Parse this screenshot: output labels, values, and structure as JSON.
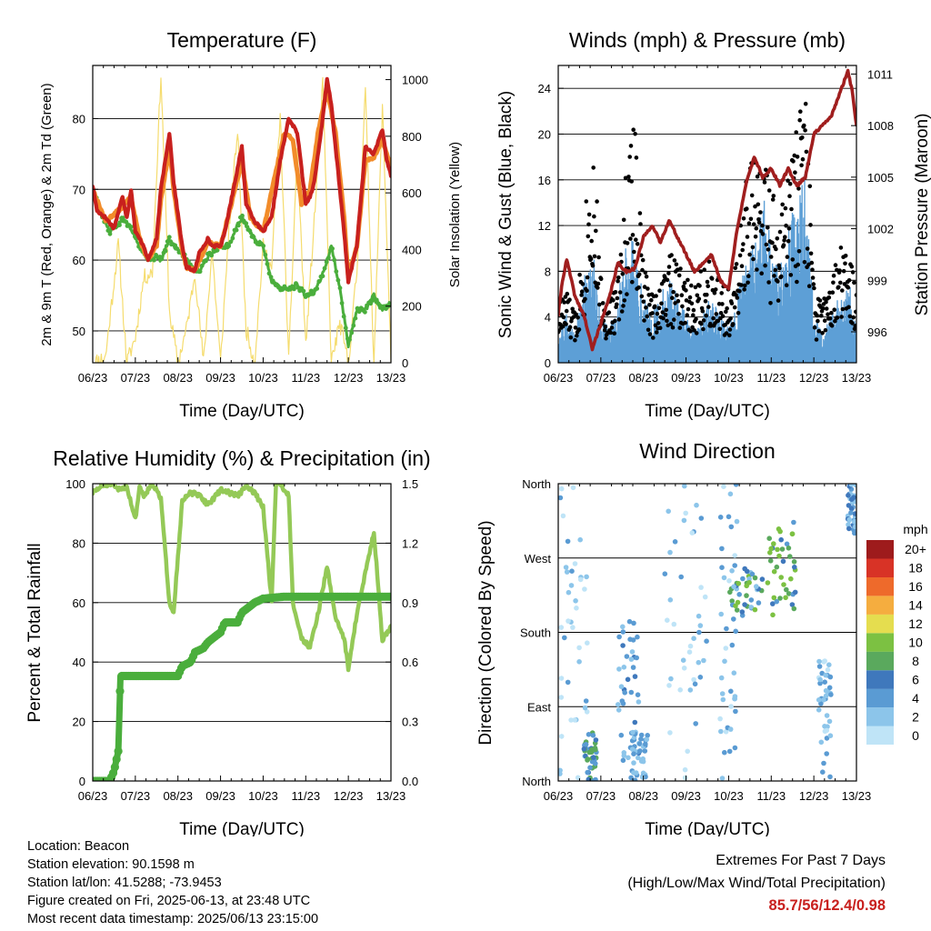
{
  "colors": {
    "t2m": "#c8201e",
    "t9m": "#f28c2a",
    "td2m": "#4aae3c",
    "solar": "#f5dc6e",
    "wind": "#5d9fd6",
    "gust": "#000000",
    "pressure": "#a01e1e",
    "rh": "#94c957",
    "precip": "#4aae3c"
  },
  "time_ticks": [
    "06/23",
    "07/23",
    "08/23",
    "09/23",
    "10/23",
    "11/23",
    "12/23",
    "13/23"
  ],
  "chart_data": [
    {
      "type": "line",
      "title": "Temperature (F)",
      "xlabel": "Time (Day/UTC)",
      "ylabel": "2m & 9m T (Red, Orange) & 2m Td (Green)",
      "y2label": "Solar Insolation (Yellow)",
      "x_ticks": [
        "06/23",
        "07/23",
        "08/23",
        "09/23",
        "10/23",
        "11/23",
        "12/23",
        "13/23"
      ],
      "ylim": [
        45.5,
        87.5
      ],
      "yticks": [
        50,
        60,
        70,
        80
      ],
      "y2lim": [
        0,
        1050
      ],
      "y2ticks": [
        0,
        200,
        400,
        600,
        800,
        1000
      ],
      "grid": true,
      "series": [
        {
          "name": "2m T",
          "color": "#c8201e",
          "axis": "left",
          "x": [
            6.0,
            6.1,
            6.3,
            6.5,
            6.7,
            6.8,
            6.9,
            7.0,
            7.2,
            7.3,
            7.5,
            7.6,
            7.8,
            7.9,
            8.1,
            8.2,
            8.4,
            8.5,
            8.7,
            8.8,
            9.0,
            9.1,
            9.3,
            9.5,
            9.6,
            9.8,
            10.0,
            10.2,
            10.4,
            10.6,
            10.8,
            11.0,
            11.1,
            11.2,
            11.4,
            11.5,
            11.6,
            11.8,
            11.9,
            12.0,
            12.2,
            12.4,
            12.6,
            12.8,
            12.9,
            13.0
          ],
          "y": [
            70.5,
            67,
            66,
            64.5,
            69,
            66,
            70,
            64,
            62,
            60,
            63,
            70,
            78,
            71,
            62,
            59,
            58.5,
            61,
            63,
            62,
            62,
            64,
            70,
            76,
            68,
            65.5,
            64,
            66,
            74,
            80,
            78,
            68,
            69,
            71,
            80,
            85.5,
            82,
            70,
            64,
            57,
            62,
            76,
            75,
            78.5,
            74,
            72
          ]
        },
        {
          "name": "9m T",
          "color": "#f28c2a",
          "axis": "left",
          "x": [
            6.0,
            6.3,
            6.7,
            6.9,
            7.1,
            7.3,
            7.5,
            7.6,
            7.8,
            7.9,
            8.1,
            8.2,
            8.4,
            8.7,
            9.0,
            9.3,
            9.5,
            9.7,
            10.0,
            10.3,
            10.5,
            10.7,
            10.9,
            11.1,
            11.3,
            11.5,
            11.7,
            11.9,
            12.0,
            12.2,
            12.4,
            12.6,
            12.8,
            13.0
          ],
          "y": [
            70,
            65.5,
            67.5,
            69,
            63,
            60,
            62,
            68.5,
            76,
            70,
            61.5,
            59,
            58.5,
            62.5,
            62,
            69,
            74,
            66,
            64,
            72.5,
            78,
            77,
            68,
            70,
            78.5,
            84,
            78,
            66,
            57.5,
            62,
            74,
            74.5,
            77,
            73
          ]
        },
        {
          "name": "2m Td",
          "color": "#4aae3c",
          "axis": "left",
          "x": [
            6.0,
            6.2,
            6.4,
            6.6,
            6.7,
            6.9,
            7.1,
            7.3,
            7.5,
            7.6,
            7.8,
            7.9,
            8.1,
            8.3,
            8.5,
            8.7,
            8.9,
            9.0,
            9.2,
            9.4,
            9.5,
            9.6,
            9.8,
            10.0,
            10.2,
            10.4,
            10.6,
            10.8,
            11.0,
            11.2,
            11.4,
            11.6,
            11.8,
            11.9,
            12.0,
            12.2,
            12.4,
            12.6,
            12.8,
            13.0
          ],
          "y": [
            70,
            66.5,
            64,
            65,
            66,
            64.5,
            62,
            60,
            60.5,
            60,
            63,
            62,
            61,
            59,
            58.5,
            60.5,
            61.5,
            62,
            62,
            65,
            66,
            65,
            63,
            62,
            57,
            56,
            56,
            56.5,
            55,
            55.5,
            58,
            62,
            56,
            52,
            48,
            53,
            53,
            55,
            53,
            54
          ]
        },
        {
          "name": "Solar Insolation",
          "color": "#f5dc6e",
          "axis": "right",
          "x": [
            6.0,
            6.3,
            6.6,
            6.8,
            7.0,
            7.2,
            7.4,
            7.6,
            7.8,
            8.0,
            8.2,
            8.4,
            8.6,
            8.8,
            9.0,
            9.2,
            9.4,
            9.6,
            9.8,
            10.0,
            10.2,
            10.4,
            10.6,
            10.8,
            11.0,
            11.2,
            11.4,
            11.6,
            11.8,
            12.0,
            12.2,
            12.4,
            12.6,
            12.8,
            13.0
          ],
          "y": [
            0,
            20,
            420,
            0,
            90,
            300,
            320,
            1020,
            180,
            0,
            120,
            320,
            0,
            400,
            0,
            480,
            820,
            120,
            0,
            410,
            330,
            880,
            0,
            760,
            60,
            500,
            980,
            0,
            140,
            0,
            320,
            960,
            0,
            900,
            20
          ]
        }
      ]
    },
    {
      "type": "line",
      "title": "Winds (mph) & Pressure (mb)",
      "xlabel": "Time (Day/UTC)",
      "ylabel": "Sonic Wind & Gust (Blue, Black)",
      "y2label": "Station Pressure (Maroon)",
      "x_ticks": [
        "06/23",
        "07/23",
        "08/23",
        "09/23",
        "10/23",
        "11/23",
        "12/23",
        "13/23"
      ],
      "ylim": [
        0,
        26
      ],
      "yticks": [
        0,
        4,
        8,
        12,
        16,
        20,
        24
      ],
      "y2lim": [
        994.2,
        1011.5
      ],
      "y2ticks": [
        996,
        999,
        1002,
        1005,
        1008,
        1011
      ],
      "grid": true,
      "series": [
        {
          "name": "Sonic Wind",
          "color": "#5d9fd6",
          "axis": "left",
          "x": [
            6.0,
            6.2,
            6.4,
            6.6,
            6.8,
            7.0,
            7.2,
            7.4,
            7.6,
            7.8,
            8.0,
            8.2,
            8.4,
            8.6,
            8.8,
            9.0,
            9.2,
            9.4,
            9.6,
            9.8,
            10.0,
            10.2,
            10.4,
            10.6,
            10.8,
            11.0,
            11.2,
            11.4,
            11.6,
            11.8,
            12.0,
            12.2,
            12.4,
            12.6,
            12.8,
            13.0
          ],
          "y": [
            2,
            3,
            2,
            5,
            7,
            3,
            2,
            4,
            8,
            7,
            4,
            3,
            4,
            5,
            4,
            3,
            2,
            3,
            4,
            3,
            2,
            4,
            6,
            8,
            10,
            7,
            6,
            8,
            10,
            12,
            3,
            2,
            3,
            4,
            5,
            3
          ]
        },
        {
          "name": "Gust",
          "color": "#000000",
          "axis": "left",
          "x": [
            6.0,
            6.2,
            6.4,
            6.6,
            6.8,
            7.0,
            7.2,
            7.4,
            7.6,
            7.8,
            8.0,
            8.2,
            8.4,
            8.6,
            8.8,
            9.0,
            9.2,
            9.4,
            9.6,
            9.8,
            10.0,
            10.2,
            10.4,
            10.6,
            10.8,
            11.0,
            11.2,
            11.4,
            11.6,
            11.8,
            12.0,
            12.2,
            12.4,
            12.6,
            12.8,
            13.0
          ],
          "y": [
            5,
            6,
            4,
            11,
            20,
            7,
            5,
            7,
            16,
            20,
            8,
            6,
            7,
            9,
            8,
            7,
            6,
            8,
            9,
            7,
            6,
            8,
            15,
            17,
            18,
            14,
            12,
            16,
            19,
            24,
            6,
            5,
            6,
            10,
            9,
            6
          ]
        },
        {
          "name": "Station Pressure",
          "color": "#a01e1e",
          "axis": "right",
          "x": [
            6.0,
            6.1,
            6.2,
            6.4,
            6.6,
            6.8,
            7.0,
            7.2,
            7.4,
            7.6,
            7.8,
            8.0,
            8.2,
            8.4,
            8.6,
            8.8,
            9.0,
            9.2,
            9.4,
            9.6,
            9.8,
            10.0,
            10.2,
            10.4,
            10.6,
            10.8,
            11.0,
            11.2,
            11.4,
            11.6,
            11.8,
            12.0,
            12.2,
            12.4,
            12.6,
            12.8,
            12.9,
            13.0
          ],
          "y": [
            997,
            999,
            1000.2,
            998,
            997,
            995,
            996.5,
            998,
            1000,
            999.5,
            999.7,
            1001.5,
            1002.2,
            1001.2,
            1002.5,
            1001.5,
            1000.5,
            999.5,
            1000,
            1000.5,
            999,
            998.5,
            1002,
            1004.5,
            1006.2,
            1005,
            1005.5,
            1004.5,
            1005.5,
            1004.5,
            1005,
            1007.5,
            1008,
            1008.5,
            1009.8,
            1011.2,
            1010,
            1008
          ]
        }
      ]
    },
    {
      "type": "line",
      "title": "Relative Humidity (%) & Precipitation (in)",
      "xlabel": "Time (Day/UTC)",
      "ylabel": "Percent & Total Rainfall",
      "x_ticks": [
        "06/23",
        "07/23",
        "08/23",
        "09/23",
        "10/23",
        "11/23",
        "12/23",
        "13/23"
      ],
      "ylim": [
        0,
        100
      ],
      "yticks": [
        0,
        20,
        40,
        60,
        80,
        100
      ],
      "y2lim": [
        0,
        1.5
      ],
      "y2ticks": [
        "0.0",
        "0.3",
        "0.6",
        "0.9",
        "1.2",
        "1.5"
      ],
      "grid": true,
      "series": [
        {
          "name": "Relative Humidity",
          "color": "#94c957",
          "axis": "left",
          "x": [
            6.0,
            6.2,
            6.4,
            6.6,
            6.8,
            7.0,
            7.1,
            7.2,
            7.4,
            7.6,
            7.8,
            7.9,
            8.1,
            8.3,
            8.5,
            8.7,
            8.9,
            9.0,
            9.2,
            9.4,
            9.6,
            9.8,
            10.0,
            10.2,
            10.3,
            10.4,
            10.6,
            10.7,
            10.9,
            11.1,
            11.3,
            11.5,
            11.7,
            11.9,
            12.0,
            12.2,
            12.4,
            12.6,
            12.8,
            13.0
          ],
          "y": [
            97,
            99,
            100,
            98,
            99,
            88,
            99,
            96,
            100,
            95,
            60,
            57,
            94,
            97,
            96,
            93,
            96,
            98,
            97,
            96,
            99,
            97,
            92,
            60,
            100,
            100,
            96,
            60,
            48,
            45,
            57,
            72,
            55,
            48,
            38,
            56,
            70,
            84,
            47,
            52
          ]
        },
        {
          "name": "Precipitation",
          "color": "#4aae3c",
          "axis": "right",
          "x": [
            6.0,
            6.4,
            6.5,
            6.6,
            6.62,
            6.65,
            7.0,
            7.3,
            7.6,
            7.9,
            8.0,
            8.1,
            8.3,
            8.4,
            8.6,
            8.7,
            9.0,
            9.1,
            9.4,
            9.5,
            9.8,
            10.0,
            10.5,
            11.0,
            12.0,
            13.0
          ],
          "y": [
            0,
            0,
            0.05,
            0.15,
            0.3,
            0.53,
            0.53,
            0.53,
            0.53,
            0.53,
            0.53,
            0.58,
            0.6,
            0.65,
            0.67,
            0.7,
            0.75,
            0.8,
            0.8,
            0.85,
            0.9,
            0.92,
            0.93,
            0.93,
            0.93,
            0.93
          ]
        }
      ]
    },
    {
      "type": "scatter",
      "title": "Wind Direction",
      "xlabel": "Time (Day/UTC)",
      "ylabel": "Direction (Colored By Speed)",
      "x_ticks": [
        "06/23",
        "07/23",
        "08/23",
        "09/23",
        "10/23",
        "11/23",
        "12/23",
        "13/23"
      ],
      "ylim": [
        0,
        360
      ],
      "y_tick_labels": [
        "North",
        "East",
        "South",
        "West",
        "North"
      ],
      "grid": true,
      "colorbar": {
        "title": "mph",
        "labels": [
          "0",
          "2",
          "4",
          "6",
          "8",
          "10",
          "12",
          "14",
          "16",
          "18",
          "20+"
        ],
        "colors": [
          "#bfe4f7",
          "#8cc5ea",
          "#5a9bd3",
          "#3f78bc",
          "#5aa95d",
          "#7cc142",
          "#e5dd4f",
          "#f5ad3f",
          "#ee6a2b",
          "#d83326",
          "#9e1b1c"
        ]
      },
      "clusters": [
        {
          "x": [
            6.0,
            6.7
          ],
          "dir": [
            0,
            360
          ],
          "speed": [
            0,
            5
          ]
        },
        {
          "x": [
            6.6,
            6.9
          ],
          "dir": [
            0,
            60
          ],
          "speed": [
            4,
            10
          ]
        },
        {
          "x": [
            7.4,
            7.9
          ],
          "dir": [
            20,
            200
          ],
          "speed": [
            2,
            8
          ]
        },
        {
          "x": [
            7.7,
            8.1
          ],
          "dir": [
            0,
            60
          ],
          "speed": [
            2,
            6
          ]
        },
        {
          "x": [
            8.5,
            9.5
          ],
          "dir": [
            0,
            360
          ],
          "speed": [
            0,
            5
          ]
        },
        {
          "x": [
            9.8,
            10.2
          ],
          "dir": [
            0,
            360
          ],
          "speed": [
            0,
            6
          ]
        },
        {
          "x": [
            10.0,
            10.8
          ],
          "dir": [
            200,
            260
          ],
          "speed": [
            3,
            12
          ]
        },
        {
          "x": [
            10.9,
            11.6
          ],
          "dir": [
            200,
            320
          ],
          "speed": [
            5,
            12
          ]
        },
        {
          "x": [
            12.1,
            12.4
          ],
          "dir": [
            0,
            150
          ],
          "speed": [
            1,
            6
          ]
        },
        {
          "x": [
            12.8,
            13.0
          ],
          "dir": [
            300,
            360
          ],
          "speed": [
            2,
            8
          ]
        }
      ]
    }
  ],
  "footer": {
    "location": "Location: Beacon",
    "elevation": "Station elevation: 90.1598 m",
    "latlon": "Station lat/lon: 41.5288; -73.9453",
    "created": "Figure created on Fri, 2025-06-13, at 23:48 UTC",
    "recent": "Most recent data timestamp: 2025/06/13 23:15:00",
    "extremes_title": "Extremes For Past 7 Days",
    "extremes_sub": "(High/Low/Max Wind/Total Precipitation)",
    "extremes_values": "85.7/56/12.4/0.98"
  }
}
